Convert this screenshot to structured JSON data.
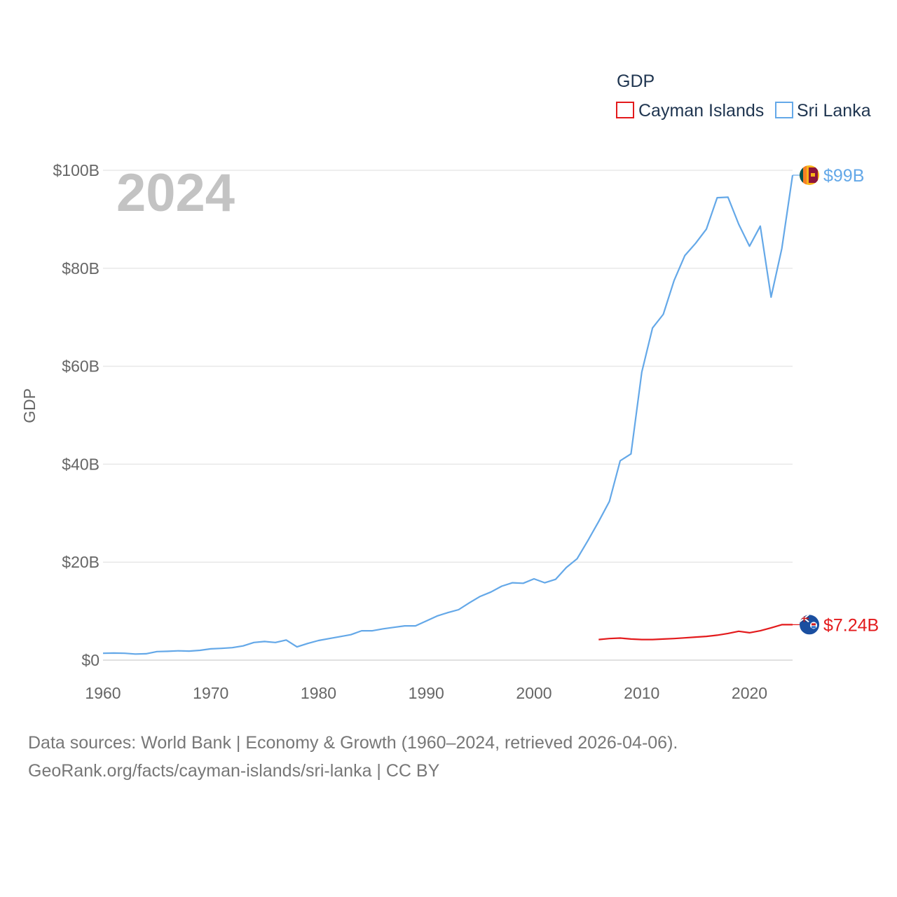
{
  "chart_data": {
    "type": "line",
    "year_label": "2024",
    "ylabel": "GDP",
    "ylim": [
      0,
      100
    ],
    "xlim": [
      1960,
      2024
    ],
    "yticks": [
      {
        "value": 0,
        "label": "$0"
      },
      {
        "value": 20,
        "label": "$20B"
      },
      {
        "value": 40,
        "label": "$40B"
      },
      {
        "value": 60,
        "label": "$60B"
      },
      {
        "value": 80,
        "label": "$80B"
      },
      {
        "value": 100,
        "label": "$100B"
      }
    ],
    "xticks": [
      1960,
      1970,
      1980,
      1990,
      2000,
      2010,
      2020
    ],
    "legend": {
      "title": "GDP",
      "entries": [
        {
          "name": "Cayman Islands",
          "color": "#e31a1c"
        },
        {
          "name": "Sri Lanka",
          "color": "#64a8e8"
        }
      ]
    },
    "series": [
      {
        "name": "Sri Lanka",
        "color": "#64a8e8",
        "end_label": "$99B",
        "x": [
          1960,
          1961,
          1962,
          1963,
          1964,
          1965,
          1966,
          1967,
          1968,
          1969,
          1970,
          1971,
          1972,
          1973,
          1974,
          1975,
          1976,
          1977,
          1978,
          1979,
          1980,
          1981,
          1982,
          1983,
          1984,
          1985,
          1986,
          1987,
          1988,
          1989,
          1990,
          1991,
          1992,
          1993,
          1994,
          1995,
          1996,
          1997,
          1998,
          1999,
          2000,
          2001,
          2002,
          2003,
          2004,
          2005,
          2006,
          2007,
          2008,
          2009,
          2010,
          2011,
          2012,
          2013,
          2014,
          2015,
          2016,
          2017,
          2018,
          2019,
          2020,
          2021,
          2022,
          2023,
          2024
        ],
        "values": [
          1.4,
          1.45,
          1.4,
          1.25,
          1.3,
          1.75,
          1.8,
          1.9,
          1.85,
          2.0,
          2.3,
          2.4,
          2.55,
          2.9,
          3.6,
          3.8,
          3.6,
          4.1,
          2.7,
          3.4,
          4.0,
          4.4,
          4.8,
          5.2,
          6.0,
          6.0,
          6.4,
          6.7,
          7.0,
          7.0,
          8.0,
          9.0,
          9.7,
          10.3,
          11.7,
          13.0,
          13.9,
          15.1,
          15.8,
          15.7,
          16.6,
          15.8,
          16.5,
          18.9,
          20.7,
          24.4,
          28.3,
          32.4,
          40.7,
          42.1,
          58.8,
          67.8,
          70.6,
          77.5,
          82.6,
          85.1,
          88.0,
          94.4,
          94.5,
          89.0,
          84.5,
          88.6,
          74.1,
          84.0,
          99.0
        ]
      },
      {
        "name": "Cayman Islands",
        "color": "#e31a1c",
        "end_label": "$7.24B",
        "x": [
          2006,
          2007,
          2008,
          2009,
          2010,
          2011,
          2012,
          2013,
          2014,
          2015,
          2016,
          2017,
          2018,
          2019,
          2020,
          2021,
          2022,
          2023,
          2024
        ],
        "values": [
          4.2,
          4.4,
          4.5,
          4.3,
          4.2,
          4.2,
          4.3,
          4.4,
          4.55,
          4.7,
          4.85,
          5.1,
          5.45,
          5.9,
          5.6,
          6.0,
          6.6,
          7.24,
          7.24
        ]
      }
    ]
  },
  "footer": {
    "line1": "Data sources: World Bank | Economy & Growth (1960–2024, retrieved 2026-04-06).",
    "line2": "GeoRank.org/facts/cayman-islands/sri-lanka | CC BY"
  }
}
